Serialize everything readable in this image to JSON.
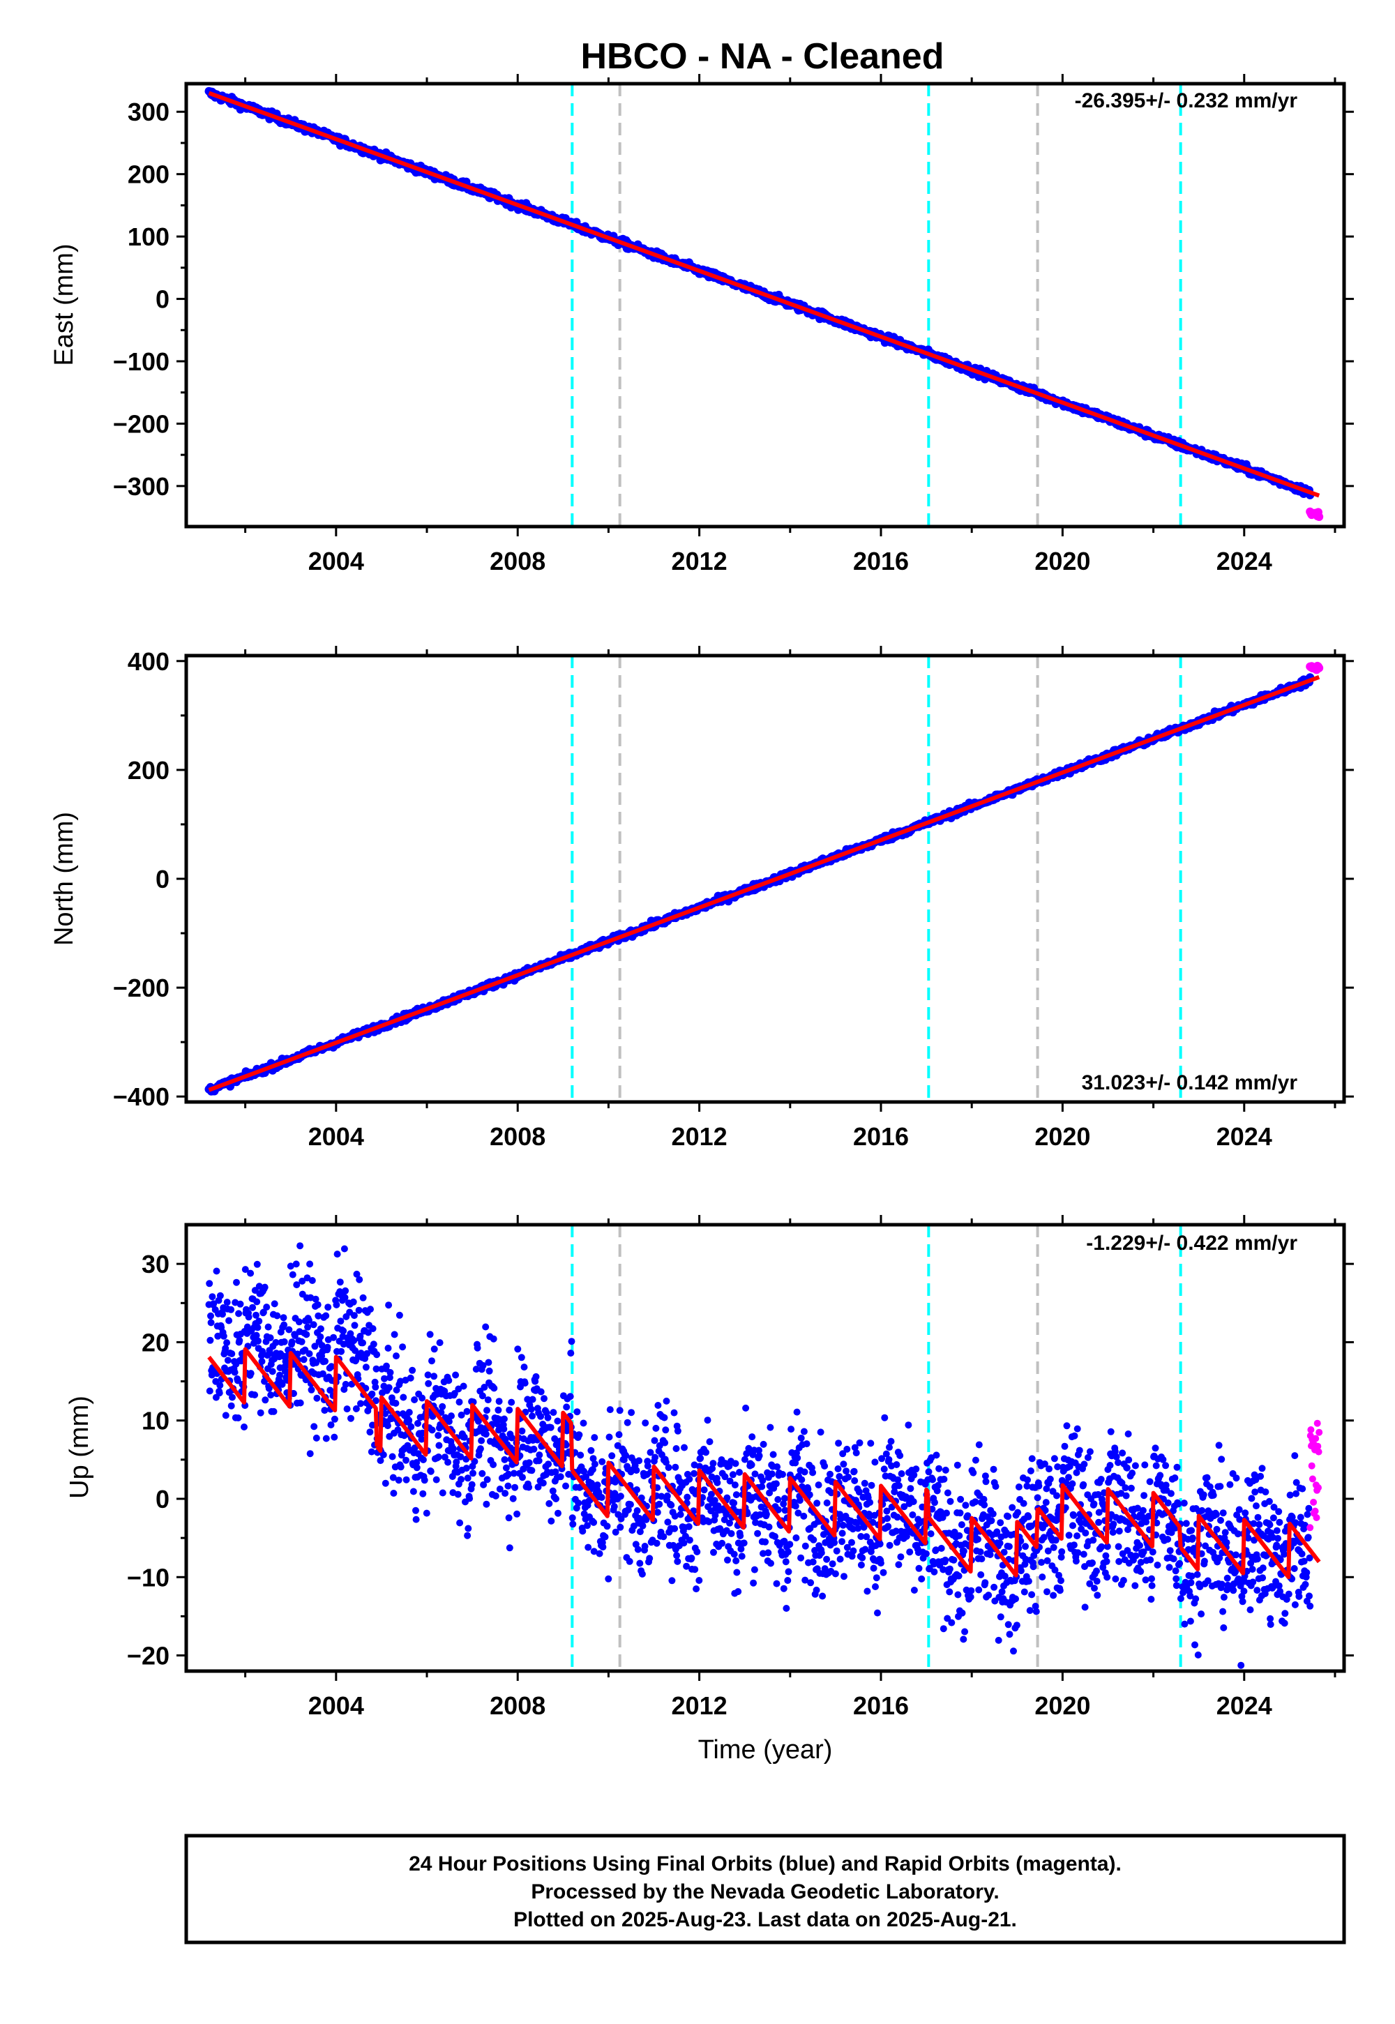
{
  "page": {
    "title": "HBCO  - NA - Cleaned"
  },
  "colors": {
    "final_orbits": "#0000ff",
    "rapid_orbits": "#ff00ff",
    "model_fit": "#ff0000",
    "equipment_change_line": "#00ffff",
    "other_event_line": "#c0c0c0"
  },
  "events": {
    "cyan_dashed_years": [
      2009.2,
      2017.05,
      2022.6
    ],
    "gray_dashed_years": [
      2010.25,
      2019.45
    ]
  },
  "chart_data": [
    {
      "type": "scatter",
      "ylabel": "East (mm)",
      "xlabel": "",
      "rate_label": "-26.395+/- 0.232 mm/yr",
      "xlim": [
        2000.7,
        2026.2
      ],
      "ylim": [
        -365,
        345
      ],
      "x_ticks": [
        "2004",
        "2008",
        "2012",
        "2016",
        "2020",
        "2024"
      ],
      "y_ticks": [
        "300",
        "200",
        "100",
        "0",
        "−100",
        "−200",
        "−300"
      ],
      "y_tick_values": [
        300,
        200,
        100,
        0,
        -100,
        -200,
        -300
      ],
      "series": [
        {
          "name": "Final Orbits",
          "color": "#0000ff",
          "x_range": [
            2001.2,
            2025.45
          ],
          "start_value": 330,
          "rate_per_year": -26.395,
          "scatter_amplitude": 3
        },
        {
          "name": "Rapid Orbits",
          "color": "#ff00ff",
          "x_range": [
            2025.45,
            2025.65
          ],
          "start_value": -345,
          "rate_per_year": -26.395,
          "scatter_amplitude": 2
        }
      ],
      "fit": {
        "start_value": 330,
        "rate_per_year": -26.395
      }
    },
    {
      "type": "scatter",
      "ylabel": "North (mm)",
      "xlabel": "",
      "rate_label": "31.023+/- 0.142 mm/yr",
      "xlim": [
        2000.7,
        2026.2
      ],
      "ylim": [
        -410,
        410
      ],
      "x_ticks": [
        "2004",
        "2008",
        "2012",
        "2016",
        "2020",
        "2024"
      ],
      "y_ticks": [
        "400",
        "200",
        "0",
        "−200",
        "−400"
      ],
      "y_tick_values": [
        400,
        200,
        0,
        -200,
        -400
      ],
      "series": [
        {
          "name": "Final Orbits",
          "color": "#0000ff",
          "x_range": [
            2001.2,
            2025.45
          ],
          "start_value": -388,
          "rate_per_year": 31.023,
          "scatter_amplitude": 3
        },
        {
          "name": "Rapid Orbits",
          "color": "#ff00ff",
          "x_range": [
            2025.45,
            2025.65
          ],
          "start_value": 388,
          "rate_per_year": 31.023,
          "scatter_amplitude": 2
        }
      ],
      "fit": {
        "start_value": -388,
        "rate_per_year": 31.023
      }
    },
    {
      "type": "scatter",
      "ylabel": "Up (mm)",
      "xlabel": "Time (year)",
      "rate_label": "-1.229+/- 0.422 mm/yr",
      "xlim": [
        2000.7,
        2026.2
      ],
      "ylim": [
        -22,
        35
      ],
      "x_ticks": [
        "2004",
        "2008",
        "2012",
        "2016",
        "2020",
        "2024"
      ],
      "y_ticks": [
        "30",
        "20",
        "10",
        "0",
        "−10",
        "−20"
      ],
      "y_tick_values": [
        30,
        20,
        10,
        0,
        -10,
        -20
      ],
      "series": [
        {
          "name": "Final Orbits",
          "color": "#0000ff",
          "x_range": [
            2001.2,
            2025.45
          ],
          "rate_per_year": -1.229,
          "scatter_amplitude": 4.5
        },
        {
          "name": "Rapid Orbits",
          "color": "#ff00ff",
          "x_range": [
            2025.45,
            2025.65
          ],
          "rate_per_year": -1.229,
          "scatter_amplitude": 4
        }
      ],
      "fit": {
        "rate_per_year": -1.229,
        "annual_amplitude": 3.5,
        "segments": [
          {
            "x_range": [
              2001.2,
              2004.9
            ],
            "offset": 16
          },
          {
            "x_range": [
              2004.9,
              2009.2
            ],
            "offset": 9.5
          },
          {
            "x_range": [
              2009.2,
              2017.05
            ],
            "offset": 1.5
          },
          {
            "x_range": [
              2017.05,
              2019.45
            ],
            "offset": -5.5
          },
          {
            "x_range": [
              2019.45,
              2022.6
            ],
            "offset": -1.5
          },
          {
            "x_range": [
              2022.6,
              2025.65
            ],
            "offset": -5.5
          }
        ]
      }
    }
  ],
  "footer": {
    "line1": "24 Hour Positions Using Final Orbits (blue) and Rapid Orbits (magenta).",
    "line2": "Processed by the Nevada Geodetic Laboratory.",
    "line3": "Plotted on 2025-Aug-23. Last data on 2025-Aug-21."
  }
}
